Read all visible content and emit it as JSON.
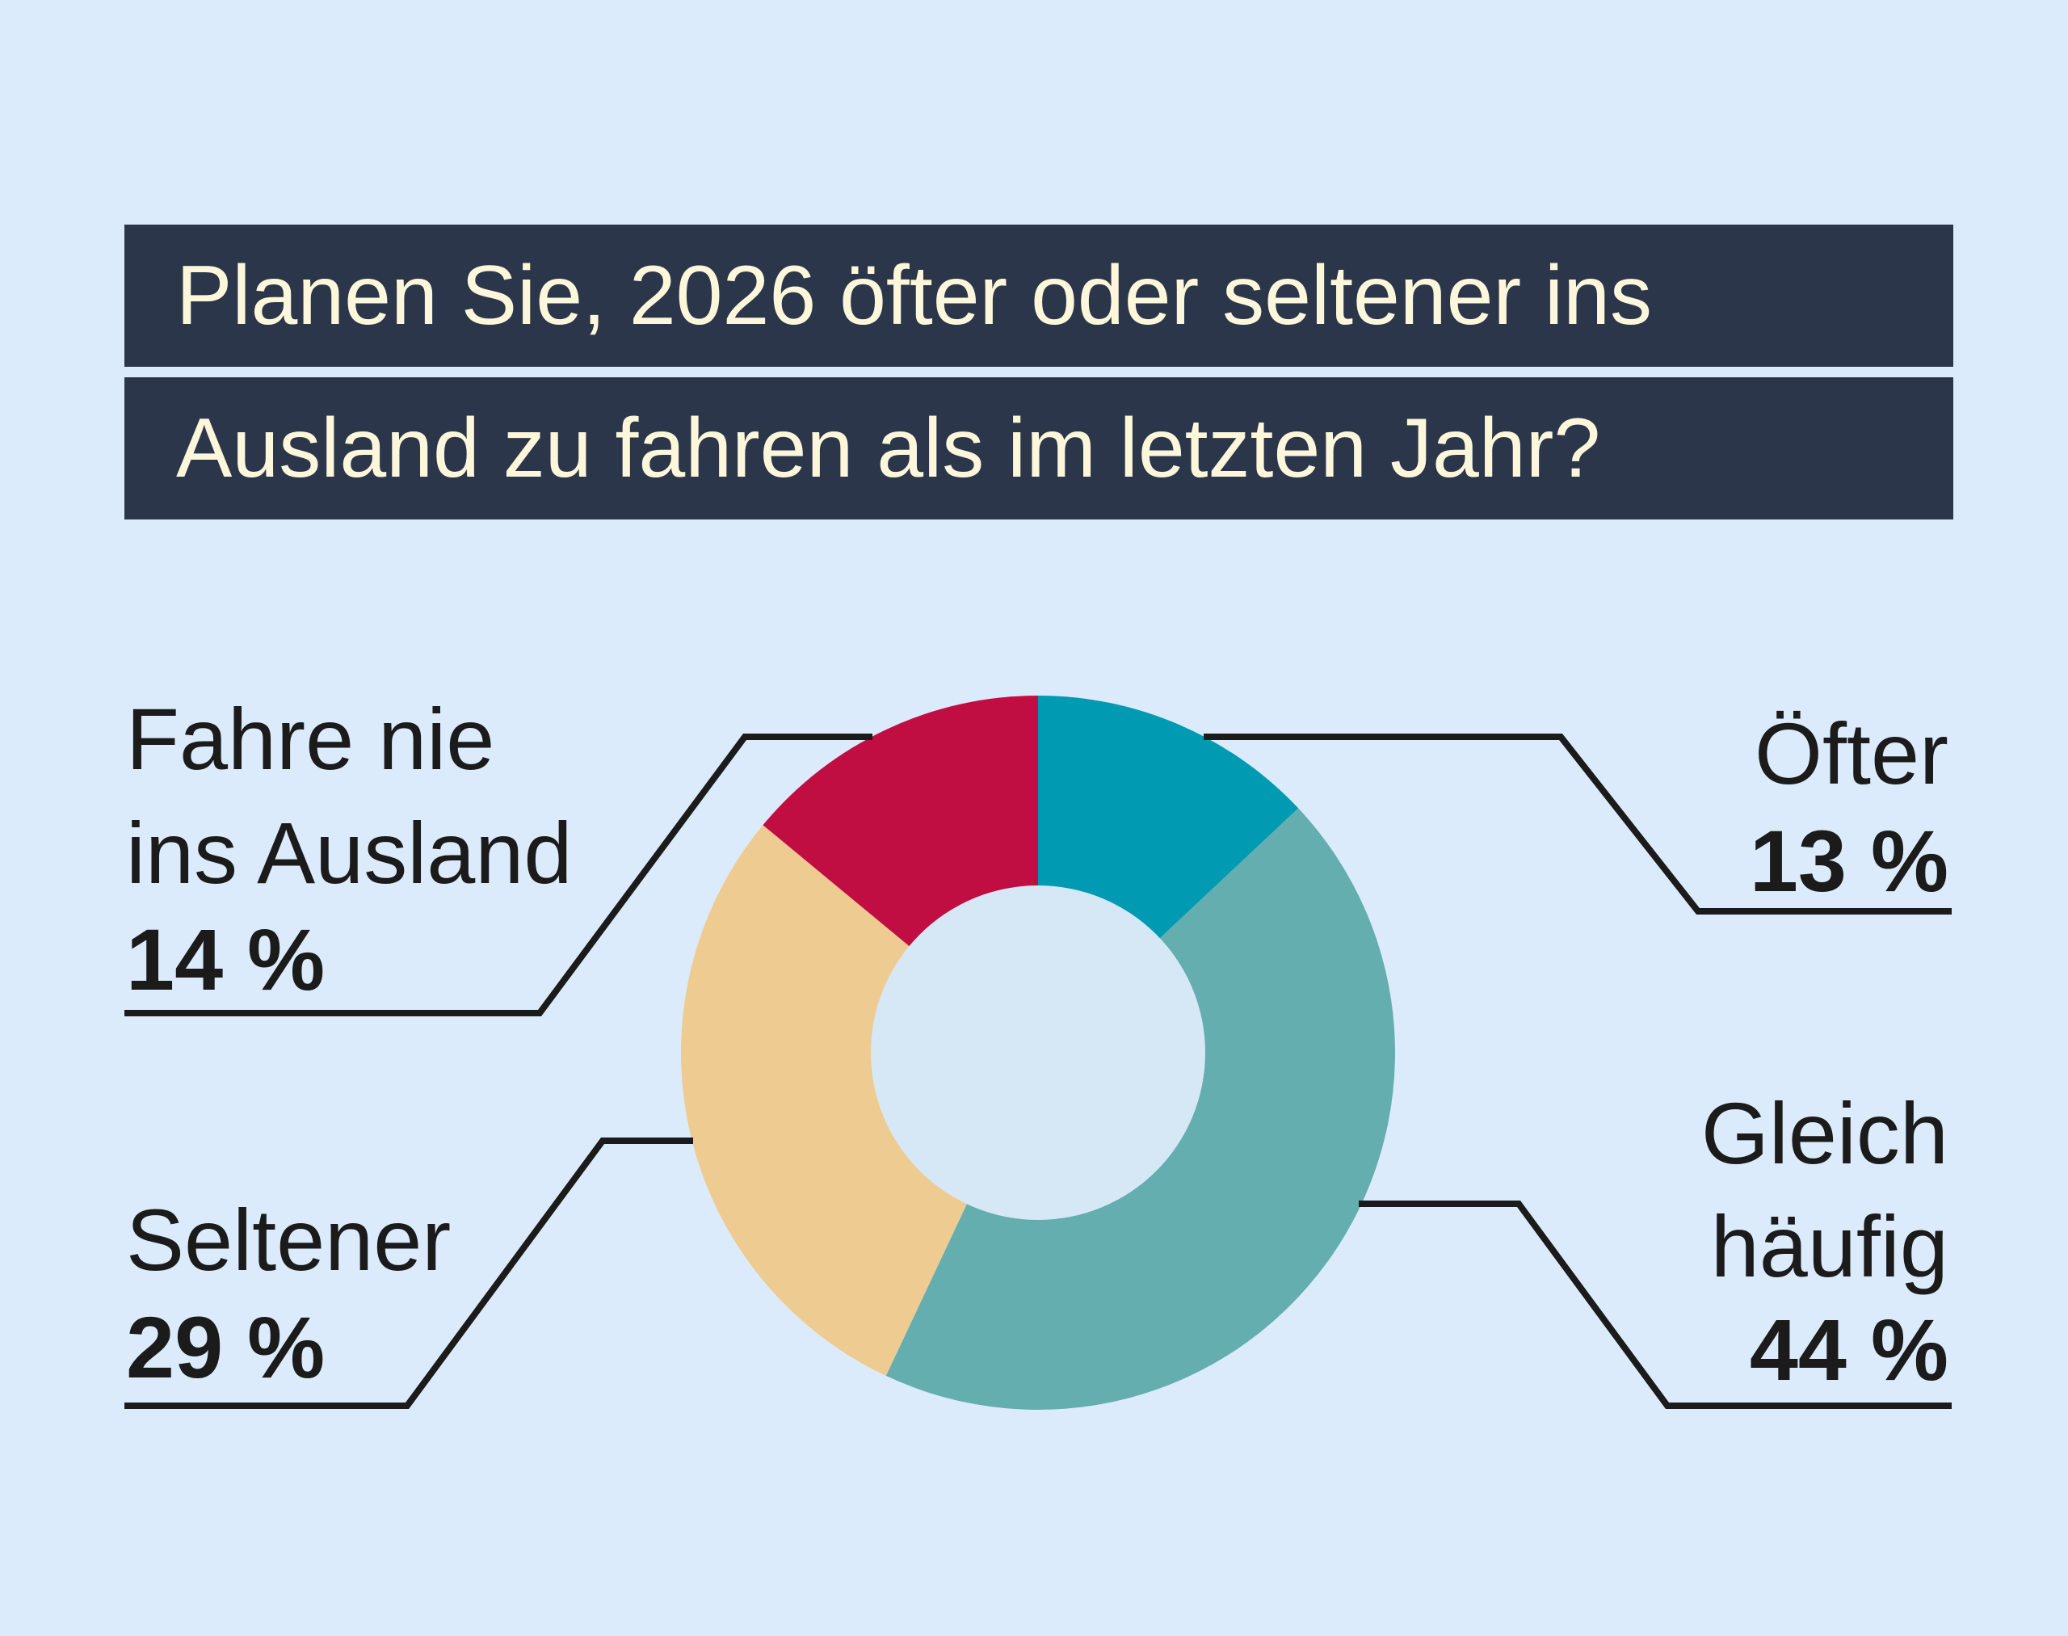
{
  "chart_data": {
    "type": "pie",
    "variant": "donut",
    "title_lines": [
      "Planen Sie, 2026 öfter oder seltener ins",
      "Ausland zu fahren als im letzten Jahr?"
    ],
    "slices": [
      {
        "label_lines": [
          "Öfter"
        ],
        "value": 13,
        "value_label": "13 %",
        "color": "#009ab3"
      },
      {
        "label_lines": [
          "Gleich",
          "häufig"
        ],
        "value": 44,
        "value_label": "44 %",
        "color": "#64aeb0"
      },
      {
        "label_lines": [
          "Seltener"
        ],
        "value": 29,
        "value_label": "29 %",
        "color": "#eecb91"
      },
      {
        "label_lines": [
          "Fahre nie",
          "ins Ausland"
        ],
        "value": 14,
        "value_label": "14 %",
        "color": "#c10e42"
      }
    ],
    "unit": "%",
    "start_angle": "12 o'clock, clockwise"
  },
  "colors": {
    "background": "#dbebfb",
    "title_bar": "#2b364a",
    "title_text": "#fcf6da",
    "donut_hole": "#d6e8f6",
    "leader_line": "#1b1b1b"
  }
}
